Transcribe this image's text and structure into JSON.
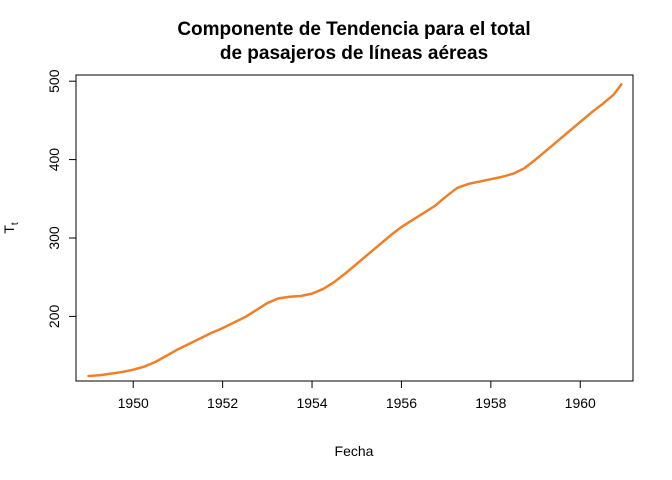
{
  "chart_data": {
    "type": "line",
    "title_lines": [
      "Componente de Tendencia para el total",
      "de pasajeros de líneas aéreas"
    ],
    "xlabel": "Fecha",
    "ylabel_main": "T",
    "ylabel_sub": "t",
    "xlim": [
      1948.72,
      1961.18
    ],
    "ylim": [
      117.6,
      507.9
    ],
    "x_ticks": [
      1950,
      1952,
      1954,
      1956,
      1958,
      1960
    ],
    "y_ticks": [
      200,
      300,
      400,
      500
    ],
    "grid": false,
    "legend": "none",
    "series": [
      {
        "color": "#F07F28",
        "x": [
          1949.0,
          1949.25,
          1949.5,
          1949.75,
          1950.0,
          1950.25,
          1950.5,
          1950.75,
          1951.0,
          1951.25,
          1951.5,
          1951.75,
          1952.0,
          1952.25,
          1952.5,
          1952.75,
          1953.0,
          1953.25,
          1953.5,
          1953.75,
          1954.0,
          1954.25,
          1954.5,
          1954.75,
          1955.0,
          1955.25,
          1955.5,
          1955.75,
          1956.0,
          1956.25,
          1956.5,
          1956.75,
          1957.0,
          1957.25,
          1957.5,
          1957.75,
          1958.0,
          1958.25,
          1958.5,
          1958.75,
          1959.0,
          1959.25,
          1959.5,
          1959.75,
          1960.0,
          1960.25,
          1960.5,
          1960.75,
          1960.92
        ],
        "values": [
          124,
          125,
          127,
          129,
          132,
          136,
          142,
          150,
          158,
          165,
          172,
          179,
          185,
          192,
          199,
          208,
          217,
          223,
          225,
          226,
          229,
          235,
          244,
          255,
          267,
          279,
          291,
          303,
          314,
          323,
          332,
          341,
          353,
          364,
          369,
          372,
          375,
          378,
          382,
          389,
          400,
          412,
          424,
          436,
          448,
          460,
          471,
          483,
          496
        ]
      }
    ]
  }
}
